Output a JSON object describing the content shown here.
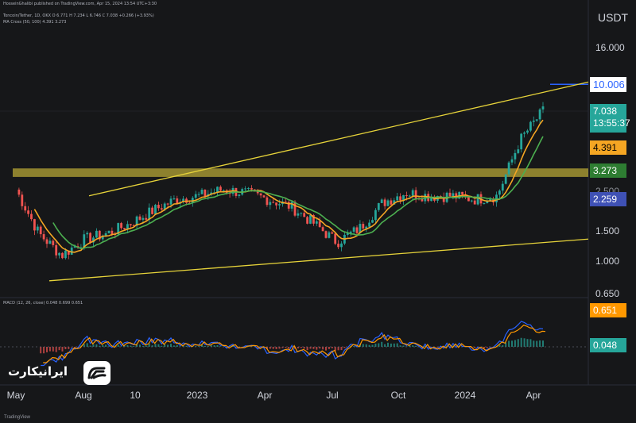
{
  "header": {
    "line1": "HosseinGhalibi published on TradingView.com, Apr 15, 2024 13:54 UTC+3:30",
    "line2": "Toncoin/Tether, 1D, OKX  O 6.771  H 7.234  L 6.746  C 7.038  +0.266 (+3.93%)",
    "line3": "MA Cross (50, 100)  4.391  3.273",
    "macd_label": "MACD (12, 26, close)  0.048  0.699  0.651"
  },
  "currency": "USDT",
  "footer": "TradingView",
  "logo": {
    "text": "ایرانیکارت",
    "icon": "irancart-logo-icon"
  },
  "colors": {
    "background": "#161719",
    "candle_up": "#26a69a",
    "candle_down": "#ef5350",
    "ma_fast": "#f5a623",
    "ma_slow": "#4caf50",
    "trendline": "#e6d33a",
    "zone": "#b5a536",
    "macd_line": "#2962ff",
    "signal_line": "#ff9800"
  },
  "price_tags": [
    {
      "value": "10.006",
      "bg": "#ffffff",
      "fg": "#2962ff"
    },
    {
      "value": "7.038",
      "sub": "13:55:37",
      "bg": "#26a69a",
      "fg": "#ffffff"
    },
    {
      "value": "4.391",
      "bg": "#f5a623",
      "fg": "#000000"
    },
    {
      "value": "3.273",
      "bg": "#2e7d32",
      "fg": "#ffffff"
    },
    {
      "value": "2.259",
      "bg": "#3f51b5",
      "fg": "#ffffff"
    },
    {
      "value": "0.651",
      "bg": "#ff9800",
      "fg": "#ffffff"
    },
    {
      "value": "0.048",
      "bg": "#26a69a",
      "fg": "#ffffff"
    }
  ],
  "chart_data": {
    "type": "candlestick",
    "title": "Toncoin/Tether, 1D, OKX",
    "yscale": "log",
    "ylim": [
      0.62,
      20
    ],
    "y_ticks": [
      "16.000",
      "10.006",
      "7.038",
      "4.391",
      "3.273",
      "2.500",
      "2.259",
      "1.500",
      "1.000",
      "0.650"
    ],
    "x_ticks": [
      "May",
      "Aug",
      "10",
      "2023",
      "Apr",
      "Jul",
      "Oct",
      "2024",
      "Apr"
    ],
    "ohlc_weekly_approx": {
      "x": [
        "2022-05",
        "2022-06",
        "2022-07",
        "2022-08",
        "2022-09",
        "2022-10",
        "2022-11",
        "2022-12",
        "2023-01",
        "2023-02",
        "2023-03",
        "2023-04",
        "2023-05",
        "2023-06",
        "2023-07",
        "2023-08",
        "2023-09",
        "2023-10",
        "2023-11",
        "2023-12",
        "2024-01",
        "2024-02",
        "2024-03",
        "2024-04"
      ],
      "close": [
        2.5,
        1.4,
        1.05,
        1.3,
        1.4,
        1.6,
        1.9,
        2.2,
        2.3,
        2.5,
        2.4,
        2.2,
        2.0,
        1.6,
        1.25,
        1.5,
        2.1,
        2.4,
        2.3,
        2.3,
        2.2,
        2.3,
        4.8,
        7.04
      ]
    },
    "ma_cross": {
      "fast_period": 50,
      "slow_period": 100,
      "fast_last": 4.391,
      "slow_last": 3.273
    },
    "support_zone": [
      2.95,
      3.3
    ],
    "trendlines": {
      "upper": {
        "from": [
          "2022-07",
          2.3
        ],
        "to": [
          "2024-04",
          10.3
        ]
      },
      "lower": {
        "from": [
          "2022-06",
          0.75
        ],
        "to": [
          "2024-04",
          1.3
        ]
      }
    },
    "horizontal_line": 10.006,
    "macd": {
      "fast": 12,
      "slow": 26,
      "histogram": 0.048,
      "macd": 0.699,
      "signal": 0.651
    }
  }
}
